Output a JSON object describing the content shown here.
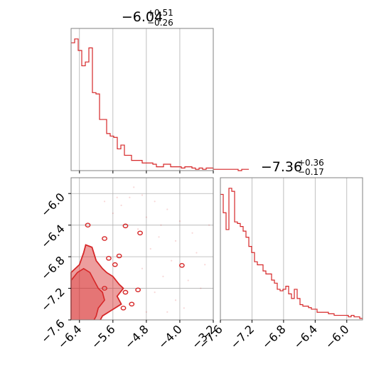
{
  "colors": {
    "series": "#d62728",
    "grid": "#b0b0b0",
    "frame": "#808080"
  },
  "chart_data": [
    {
      "type": "histogram",
      "panel": "marginal-x",
      "title": {
        "value": "−6.04",
        "plus": "+0.51",
        "minus": "−0.26"
      },
      "xlim": [
        -6.6,
        -3.2
      ],
      "x_ticks": [
        -6.4,
        -5.6,
        -4.8,
        -4.0,
        -3.2
      ],
      "y_ticks": [],
      "grid": true,
      "bin_edges_start": -6.6,
      "bin_width": 0.085,
      "counts": [
        100,
        103,
        94,
        82,
        85,
        96,
        61,
        60,
        40,
        40,
        29,
        27,
        26,
        17,
        20,
        12,
        12,
        8,
        8,
        8,
        6,
        6,
        6,
        5,
        3,
        3,
        5,
        5,
        3,
        3,
        3,
        2,
        3,
        3,
        2,
        1,
        2,
        1,
        2,
        2,
        1,
        1,
        1,
        1,
        1,
        1,
        1,
        0,
        1,
        1
      ]
    },
    {
      "type": "contour",
      "panel": "joint",
      "xlim": [
        -6.6,
        -3.2
      ],
      "ylim": [
        -7.6,
        -5.8
      ],
      "x_ticks": [
        "−6.4",
        "−5.6",
        "−4.8",
        "−4.0",
        "−3.2"
      ],
      "y_ticks": [
        "−6.0",
        "−6.4",
        "−6.8",
        "−7.2",
        "−7.6"
      ],
      "x_tick_values": [
        -6.4,
        -5.6,
        -4.8,
        -4.0,
        -3.2
      ],
      "y_tick_values": [
        -6.0,
        -6.4,
        -6.8,
        -7.2,
        -7.6
      ],
      "grid": true,
      "inner_region": [
        [
          -6.6,
          -7.6
        ],
        [
          -6.6,
          -7.15
        ],
        [
          -6.5,
          -7.05
        ],
        [
          -6.38,
          -7.0
        ],
        [
          -6.3,
          -7.1
        ],
        [
          -6.2,
          -7.25
        ],
        [
          -6.15,
          -7.45
        ],
        [
          -6.05,
          -7.55
        ],
        [
          -6.0,
          -7.6
        ]
      ],
      "outer_contour": [
        [
          -6.6,
          -7.6
        ],
        [
          -6.6,
          -7.0
        ],
        [
          -6.4,
          -6.9
        ],
        [
          -6.3,
          -6.75
        ],
        [
          -6.25,
          -6.65
        ],
        [
          -6.1,
          -6.68
        ],
        [
          -6.0,
          -6.85
        ],
        [
          -5.85,
          -6.95
        ],
        [
          -5.75,
          -7.0
        ],
        [
          -5.6,
          -7.05
        ],
        [
          -5.45,
          -7.15
        ],
        [
          -5.35,
          -7.2
        ],
        [
          -5.5,
          -7.3
        ],
        [
          -5.4,
          -7.4
        ],
        [
          -5.55,
          -7.45
        ],
        [
          -5.7,
          -7.5
        ],
        [
          -5.85,
          -7.55
        ],
        [
          -5.9,
          -7.6
        ]
      ],
      "middle_contour": [
        [
          -6.6,
          -7.6
        ],
        [
          -6.6,
          -7.1
        ],
        [
          -6.45,
          -7.0
        ],
        [
          -6.3,
          -6.95
        ],
        [
          -6.15,
          -7.0
        ],
        [
          -6.05,
          -7.1
        ],
        [
          -5.95,
          -7.2
        ],
        [
          -5.85,
          -7.25
        ],
        [
          -5.8,
          -7.35
        ],
        [
          -5.95,
          -7.45
        ],
        [
          -6.0,
          -7.55
        ],
        [
          -6.05,
          -7.6
        ]
      ],
      "islands": [
        [
          -6.2,
          -6.4
        ],
        [
          -5.8,
          -6.57
        ],
        [
          -5.3,
          -6.41
        ],
        [
          -4.95,
          -6.5
        ],
        [
          -5.45,
          -6.79
        ],
        [
          -5.7,
          -6.82
        ],
        [
          -5.55,
          -6.9
        ],
        [
          -5.8,
          -7.2
        ],
        [
          -5.3,
          -7.25
        ],
        [
          -5.0,
          -7.22
        ],
        [
          -5.35,
          -7.45
        ],
        [
          -5.15,
          -7.4
        ],
        [
          -3.95,
          -6.91
        ]
      ],
      "scatter_points": [
        [
          -5.1,
          -5.92
        ],
        [
          -4.9,
          -6.02
        ],
        [
          -4.6,
          -6.1
        ],
        [
          -5.4,
          -6.15
        ],
        [
          -4.3,
          -6.2
        ],
        [
          -4.8,
          -6.3
        ],
        [
          -5.0,
          -6.45
        ],
        [
          -4.5,
          -6.55
        ],
        [
          -4.1,
          -6.6
        ],
        [
          -3.7,
          -6.5
        ],
        [
          -4.7,
          -6.7
        ],
        [
          -4.2,
          -6.85
        ],
        [
          -3.6,
          -6.75
        ],
        [
          -4.9,
          -6.95
        ],
        [
          -4.4,
          -7.05
        ],
        [
          -3.8,
          -7.1
        ],
        [
          -4.6,
          -7.25
        ],
        [
          -4.1,
          -7.35
        ],
        [
          -3.5,
          -7.2
        ],
        [
          -4.8,
          -7.5
        ],
        [
          -3.3,
          -6.4
        ],
        [
          -5.6,
          -6.25
        ],
        [
          -5.8,
          -6.1
        ],
        [
          -4.0,
          -6.35
        ],
        [
          -3.4,
          -6.9
        ],
        [
          -4.3,
          -7.5
        ],
        [
          -5.2,
          -6.05
        ],
        [
          -3.9,
          -7.45
        ],
        [
          -5.5,
          -6.05
        ],
        [
          -4.45,
          -6.4
        ]
      ]
    },
    {
      "type": "histogram",
      "panel": "marginal-y",
      "title": {
        "value": "−7.36",
        "plus": "+0.36",
        "minus": "−0.17"
      },
      "xlim": [
        -7.6,
        -5.8
      ],
      "x_ticks": [
        "−7.6",
        "−7.2",
        "−6.8",
        "−6.4",
        "−6.0"
      ],
      "x_tick_values": [
        -7.6,
        -7.2,
        -6.8,
        -6.4,
        -6.0
      ],
      "y_ticks": [],
      "grid": true,
      "bin_edges_start": -7.6,
      "bin_width": 0.036,
      "counts": [
        82,
        70,
        59,
        86,
        84,
        64,
        63,
        61,
        58,
        54,
        48,
        44,
        38,
        36,
        36,
        32,
        30,
        30,
        26,
        24,
        20,
        19,
        20,
        22,
        17,
        14,
        20,
        14,
        10,
        9,
        9,
        8,
        7,
        7,
        5,
        5,
        5,
        5,
        4,
        4,
        3,
        3,
        3,
        3,
        3,
        2,
        3,
        2,
        2,
        1
      ]
    }
  ]
}
